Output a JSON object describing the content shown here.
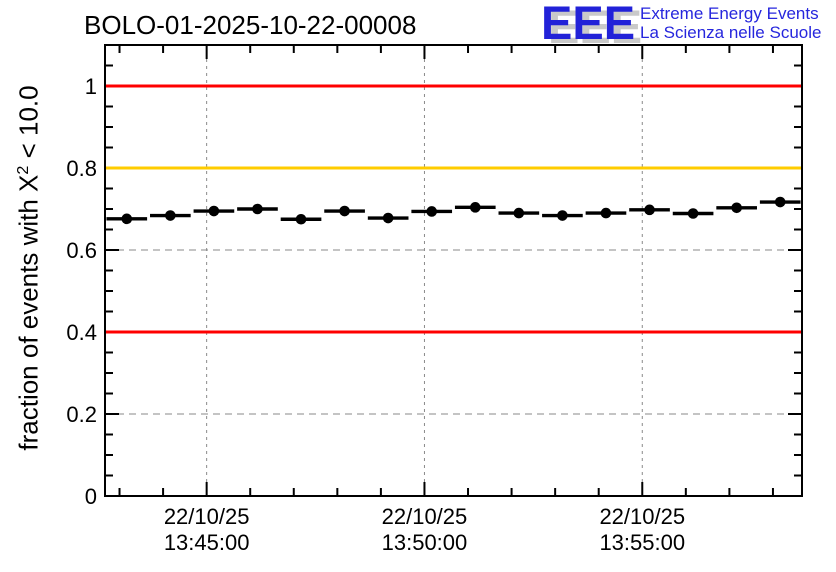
{
  "header": {
    "title": "BOLO-01-2025-10-22-00008",
    "logo": {
      "acronym": "EEE",
      "line1": "Extreme Energy Events",
      "line2": "La Scienza nelle Scuole",
      "color": "#2222dd"
    }
  },
  "chart_data": {
    "type": "scatter",
    "title": "BOLO-01-2025-10-22-00008",
    "ylabel": {
      "pre": "fraction of events with X",
      "sup": "2",
      "post": " < 10.0"
    },
    "xlabel": "",
    "ylim": [
      0,
      1.1
    ],
    "grid": true,
    "y_axis": {
      "major_tick_values": [
        0,
        0.2,
        0.4,
        0.6,
        0.8,
        1.0
      ],
      "major_tick_labels": [
        "0",
        "0.2",
        "0.4",
        "0.6",
        "0.8",
        "1"
      ],
      "minor_step": 0.05
    },
    "x_axis": {
      "span_seconds": 960,
      "start_time": "22/10/25 13:42:40",
      "end_time": "22/10/25 13:58:40",
      "minor_first_sec": 20,
      "minor_step_sec": 60,
      "major_ticks": [
        {
          "sec": 140,
          "date": "22/10/25",
          "time": "13:45:00"
        },
        {
          "sec": 440,
          "date": "22/10/25",
          "time": "13:50:00"
        },
        {
          "sec": 740,
          "date": "22/10/25",
          "time": "13:55:00"
        }
      ]
    },
    "reference_lines": [
      {
        "value": 1.0,
        "color": "#ff0000"
      },
      {
        "value": 0.8,
        "color": "#ffcc00"
      },
      {
        "value": 0.4,
        "color": "#ff0000"
      }
    ],
    "x_error_seconds": 28,
    "marker": {
      "shape": "filled-circle",
      "color": "#000000"
    },
    "points": [
      {
        "sec": 30,
        "time": "13:43",
        "value": 0.676
      },
      {
        "sec": 90,
        "time": "13:44",
        "value": 0.684
      },
      {
        "sec": 150,
        "time": "13:45",
        "value": 0.695
      },
      {
        "sec": 210,
        "time": "13:46",
        "value": 0.7
      },
      {
        "sec": 270,
        "time": "13:47",
        "value": 0.675
      },
      {
        "sec": 330,
        "time": "13:48",
        "value": 0.695
      },
      {
        "sec": 390,
        "time": "13:49",
        "value": 0.678
      },
      {
        "sec": 450,
        "time": "13:50",
        "value": 0.694
      },
      {
        "sec": 510,
        "time": "13:51",
        "value": 0.704
      },
      {
        "sec": 570,
        "time": "13:52",
        "value": 0.69
      },
      {
        "sec": 630,
        "time": "13:53",
        "value": 0.684
      },
      {
        "sec": 690,
        "time": "13:54",
        "value": 0.69
      },
      {
        "sec": 750,
        "time": "13:55",
        "value": 0.698
      },
      {
        "sec": 810,
        "time": "13:56",
        "value": 0.689
      },
      {
        "sec": 870,
        "time": "13:57",
        "value": 0.703
      },
      {
        "sec": 930,
        "time": "13:58",
        "value": 0.717
      }
    ],
    "colors": {
      "frame": "#000000",
      "grid": "#8a8a8a",
      "data": "#000000",
      "red_line": "#ff0000",
      "orange_line": "#ffcc00"
    }
  }
}
